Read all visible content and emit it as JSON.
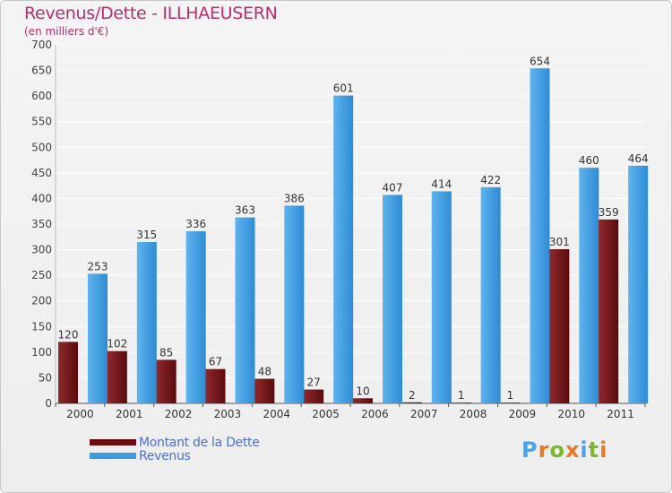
{
  "header": {
    "title": "Revenus/Dette - ILLHAEUSERN",
    "subtitle": "(en milliers d'€)"
  },
  "chart_data": {
    "type": "bar",
    "title": "Revenus/Dette - ILLHAEUSERN",
    "ylabel": "(en milliers d'€)",
    "xlabel": "",
    "ylim": [
      0,
      700
    ],
    "yticks": [
      0,
      50,
      100,
      150,
      200,
      250,
      300,
      350,
      400,
      450,
      500,
      550,
      600,
      650,
      700
    ],
    "grid": true,
    "legend_position": "bottom-left",
    "categories": [
      "2000",
      "2001",
      "2002",
      "2003",
      "2004",
      "2005",
      "2006",
      "2007",
      "2008",
      "2009",
      "2010",
      "2011"
    ],
    "series": [
      {
        "name": "Montant de la Dette",
        "color": "#7a1e22",
        "values": [
          120,
          102,
          85,
          67,
          48,
          27,
          10,
          2,
          1,
          1,
          301,
          359
        ]
      },
      {
        "name": "Revenus",
        "color": "#4aa3e6",
        "values": [
          253,
          315,
          336,
          363,
          386,
          601,
          407,
          414,
          422,
          654,
          460,
          464
        ]
      }
    ]
  },
  "legend": {
    "items": [
      {
        "label": "Montant de la Dette",
        "color": "#6b0d10"
      },
      {
        "label": "Revenus",
        "color": "#3d9be0"
      }
    ]
  },
  "logo": {
    "letters": [
      "P",
      "r",
      "o",
      "x",
      "i",
      "t",
      "i"
    ],
    "colors": [
      "#4aa3e6",
      "#e8792b",
      "#7cb82f",
      "#e8792b",
      "#4aa3e6",
      "#7cb82f",
      "#e8792b"
    ]
  }
}
